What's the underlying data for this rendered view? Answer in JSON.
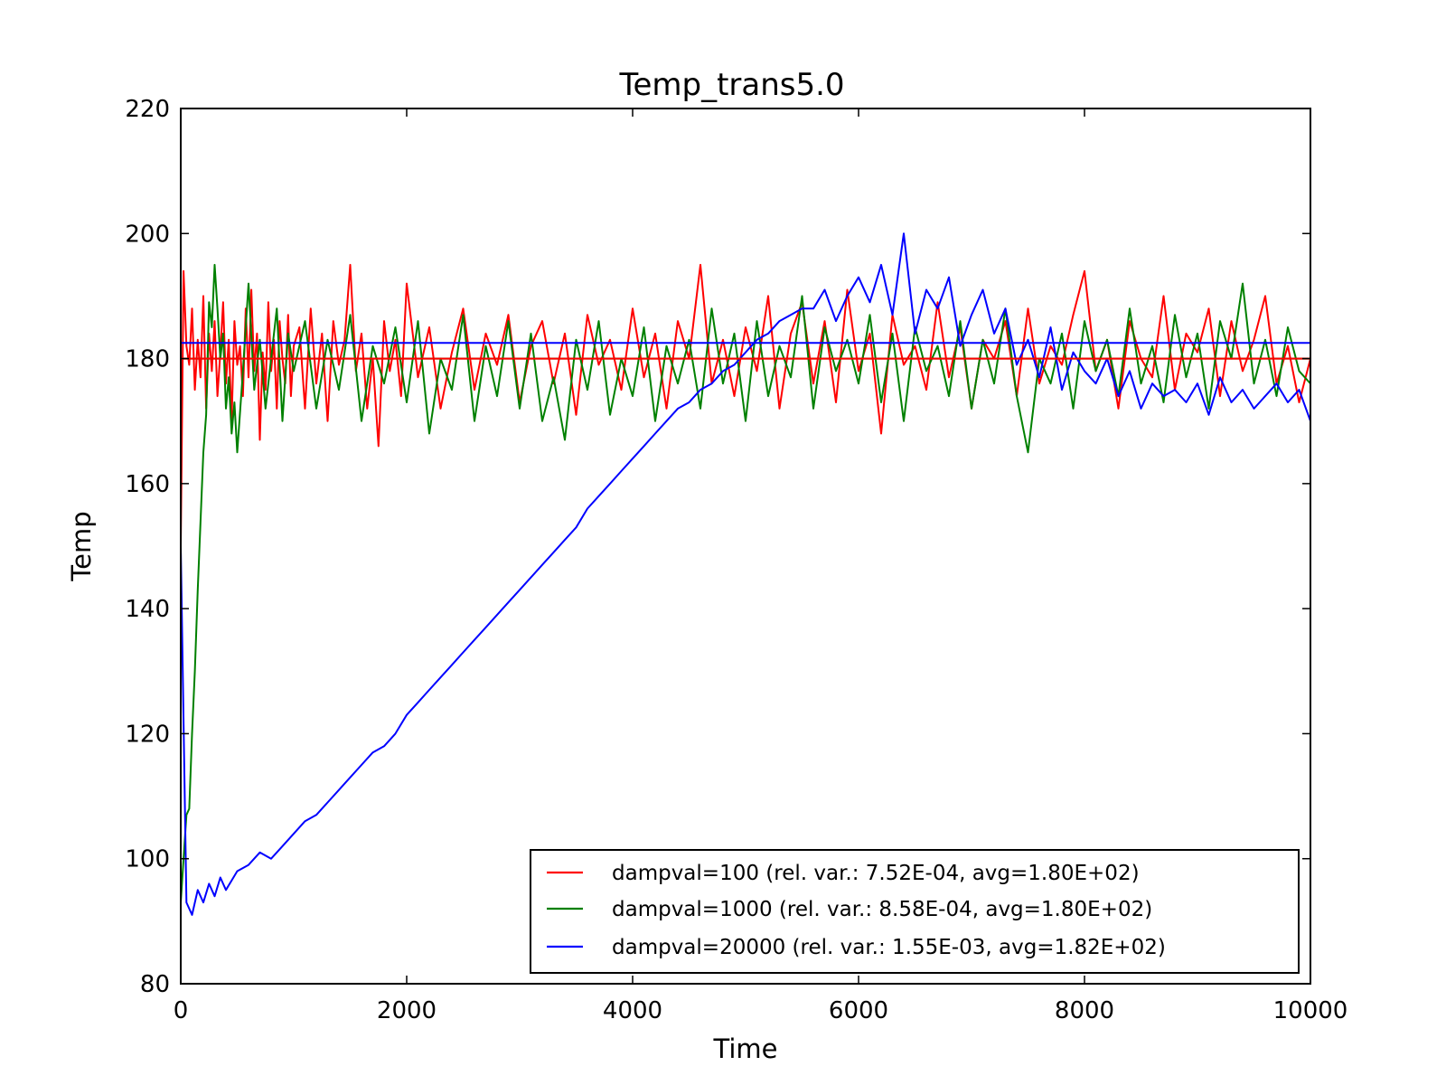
{
  "chart_data": {
    "type": "line",
    "title": "Temp_trans5.0",
    "xlabel": "Time",
    "ylabel": "Temp",
    "xlim": [
      0,
      10000
    ],
    "ylim": [
      80,
      220
    ],
    "xticks": [
      0,
      2000,
      4000,
      6000,
      8000,
      10000
    ],
    "yticks": [
      80,
      100,
      120,
      140,
      160,
      180,
      200,
      220
    ],
    "grid": false,
    "legend_position": "bottom-right",
    "series": [
      {
        "name": "dampval=100 (rel. var.: 7.52E-04, avg=1.80E+02)",
        "color": "#ff0000",
        "avg": 180.0,
        "x": [
          0,
          25,
          50,
          75,
          100,
          125,
          150,
          175,
          200,
          225,
          250,
          275,
          300,
          325,
          350,
          375,
          400,
          425,
          450,
          475,
          500,
          525,
          550,
          575,
          600,
          625,
          650,
          675,
          700,
          725,
          750,
          775,
          800,
          825,
          850,
          875,
          900,
          925,
          950,
          975,
          1000,
          1050,
          1100,
          1150,
          1200,
          1250,
          1300,
          1350,
          1400,
          1450,
          1500,
          1550,
          1600,
          1650,
          1700,
          1750,
          1800,
          1850,
          1900,
          1950,
          2000,
          2100,
          2200,
          2300,
          2400,
          2500,
          2600,
          2700,
          2800,
          2900,
          3000,
          3100,
          3200,
          3300,
          3400,
          3500,
          3600,
          3700,
          3800,
          3900,
          4000,
          4100,
          4200,
          4300,
          4400,
          4500,
          4600,
          4700,
          4800,
          4900,
          5000,
          5100,
          5200,
          5300,
          5400,
          5500,
          5600,
          5700,
          5800,
          5900,
          6000,
          6100,
          6200,
          6300,
          6400,
          6500,
          6600,
          6700,
          6800,
          6900,
          7000,
          7100,
          7200,
          7300,
          7400,
          7500,
          7600,
          7700,
          7800,
          7900,
          8000,
          8100,
          8200,
          8300,
          8400,
          8500,
          8600,
          8700,
          8800,
          8900,
          9000,
          9100,
          9200,
          9300,
          9400,
          9500,
          9600,
          9700,
          9800,
          9900,
          10000
        ],
        "y": [
          150,
          194,
          182,
          179,
          188,
          175,
          183,
          177,
          190,
          172,
          184,
          178,
          186,
          174,
          181,
          189,
          176,
          183,
          170,
          186,
          179,
          182,
          174,
          188,
          177,
          191,
          178,
          184,
          167,
          181,
          175,
          189,
          178,
          183,
          172,
          186,
          180,
          176,
          187,
          174,
          182,
          185,
          172,
          188,
          176,
          184,
          170,
          186,
          179,
          183,
          195,
          178,
          184,
          172,
          180,
          166,
          186,
          178,
          183,
          174,
          192,
          177,
          185,
          172,
          181,
          188,
          175,
          184,
          179,
          187,
          173,
          182,
          186,
          176,
          184,
          171,
          187,
          179,
          183,
          175,
          188,
          177,
          184,
          172,
          186,
          180,
          195,
          176,
          183,
          174,
          185,
          178,
          190,
          172,
          184,
          189,
          176,
          186,
          173,
          191,
          178,
          184,
          168,
          187,
          179,
          182,
          175,
          189,
          177,
          185,
          172,
          183,
          180,
          186,
          174,
          188,
          176,
          182,
          179,
          187,
          194,
          178,
          183,
          172,
          186,
          180,
          177,
          190,
          175,
          184,
          181,
          188,
          174,
          186,
          178,
          183,
          190,
          176,
          182,
          173,
          180
        ],
        "label": "dampval=100 (rel. var.: 7.52E-04, avg=1.80E+02)"
      },
      {
        "name": "dampval=1000 (rel. var.: 8.58E-04, avg=1.80E+02)",
        "color": "#008000",
        "avg": 180.0,
        "x": [
          0,
          25,
          50,
          75,
          100,
          125,
          150,
          175,
          200,
          225,
          250,
          275,
          300,
          325,
          350,
          375,
          400,
          425,
          450,
          475,
          500,
          550,
          600,
          650,
          700,
          750,
          800,
          850,
          900,
          950,
          1000,
          1100,
          1200,
          1300,
          1400,
          1500,
          1600,
          1700,
          1800,
          1900,
          2000,
          2100,
          2200,
          2300,
          2400,
          2500,
          2600,
          2700,
          2800,
          2900,
          3000,
          3100,
          3200,
          3300,
          3400,
          3500,
          3600,
          3700,
          3800,
          3900,
          4000,
          4100,
          4200,
          4300,
          4400,
          4500,
          4600,
          4700,
          4800,
          4900,
          5000,
          5100,
          5200,
          5300,
          5400,
          5500,
          5600,
          5700,
          5800,
          5900,
          6000,
          6100,
          6200,
          6300,
          6400,
          6500,
          6600,
          6700,
          6800,
          6900,
          7000,
          7100,
          7200,
          7300,
          7400,
          7500,
          7600,
          7700,
          7800,
          7900,
          8000,
          8100,
          8200,
          8300,
          8400,
          8500,
          8600,
          8700,
          8800,
          8900,
          9000,
          9100,
          9200,
          9300,
          9400,
          9500,
          9600,
          9700,
          9800,
          9900,
          10000
        ],
        "y": [
          93,
          100,
          107,
          108,
          120,
          130,
          143,
          154,
          165,
          171,
          189,
          185,
          195,
          188,
          180,
          184,
          172,
          177,
          168,
          173,
          165,
          178,
          192,
          175,
          183,
          172,
          180,
          188,
          170,
          184,
          178,
          186,
          172,
          183,
          175,
          187,
          170,
          182,
          176,
          185,
          173,
          186,
          168,
          180,
          175,
          187,
          170,
          182,
          174,
          186,
          172,
          184,
          170,
          177,
          167,
          183,
          175,
          186,
          171,
          180,
          174,
          185,
          170,
          182,
          176,
          183,
          172,
          188,
          176,
          184,
          170,
          186,
          174,
          182,
          177,
          190,
          172,
          185,
          178,
          183,
          176,
          187,
          173,
          184,
          170,
          185,
          178,
          182,
          174,
          186,
          172,
          183,
          176,
          188,
          174,
          165,
          180,
          176,
          184,
          172,
          186,
          178,
          183,
          174,
          188,
          176,
          182,
          173,
          187,
          177,
          184,
          172,
          186,
          180,
          192,
          176,
          183,
          174,
          185,
          178,
          176
        ],
        "label": "dampval=1000 (rel. var.: 8.58E-04, avg=1.80E+02)"
      },
      {
        "name": "dampval=20000 (rel. var.: 1.55E-03, avg=1.82E+02)",
        "color": "#0000ff",
        "avg": 182.5,
        "x": [
          0,
          50,
          100,
          150,
          200,
          250,
          300,
          350,
          400,
          500,
          600,
          700,
          800,
          900,
          1000,
          1100,
          1200,
          1300,
          1400,
          1500,
          1600,
          1700,
          1800,
          1900,
          2000,
          2100,
          2200,
          2300,
          2400,
          2500,
          2600,
          2700,
          2800,
          2900,
          3000,
          3100,
          3200,
          3300,
          3400,
          3500,
          3600,
          3700,
          3800,
          3900,
          4000,
          4100,
          4200,
          4300,
          4400,
          4500,
          4600,
          4700,
          4800,
          4900,
          5000,
          5100,
          5200,
          5300,
          5400,
          5500,
          5600,
          5700,
          5800,
          5900,
          6000,
          6100,
          6200,
          6300,
          6400,
          6500,
          6600,
          6700,
          6800,
          6900,
          7000,
          7100,
          7200,
          7300,
          7400,
          7500,
          7600,
          7700,
          7800,
          7900,
          8000,
          8100,
          8200,
          8300,
          8400,
          8500,
          8600,
          8700,
          8800,
          8900,
          9000,
          9100,
          9200,
          9300,
          9400,
          9500,
          9600,
          9700,
          9800,
          9900,
          10000
        ],
        "y": [
          150,
          93,
          91,
          95,
          93,
          96,
          94,
          97,
          95,
          98,
          99,
          101,
          100,
          102,
          104,
          106,
          107,
          109,
          111,
          113,
          115,
          117,
          118,
          120,
          123,
          125,
          127,
          129,
          131,
          133,
          135,
          137,
          139,
          141,
          143,
          145,
          147,
          149,
          151,
          153,
          156,
          158,
          160,
          162,
          164,
          166,
          168,
          170,
          172,
          173,
          175,
          176,
          178,
          179,
          181,
          183,
          184,
          186,
          187,
          188,
          188,
          191,
          186,
          190,
          193,
          189,
          195,
          187,
          200,
          184,
          191,
          188,
          193,
          182,
          187,
          191,
          184,
          188,
          179,
          183,
          177,
          185,
          175,
          181,
          178,
          176,
          180,
          174,
          178,
          172,
          176,
          174,
          175,
          173,
          176,
          171,
          177,
          173,
          175,
          172,
          174,
          176,
          173,
          175,
          170
        ],
        "label": "dampval=20000 (rel. var.: 1.55E-03, avg=1.82E+02)"
      }
    ]
  }
}
